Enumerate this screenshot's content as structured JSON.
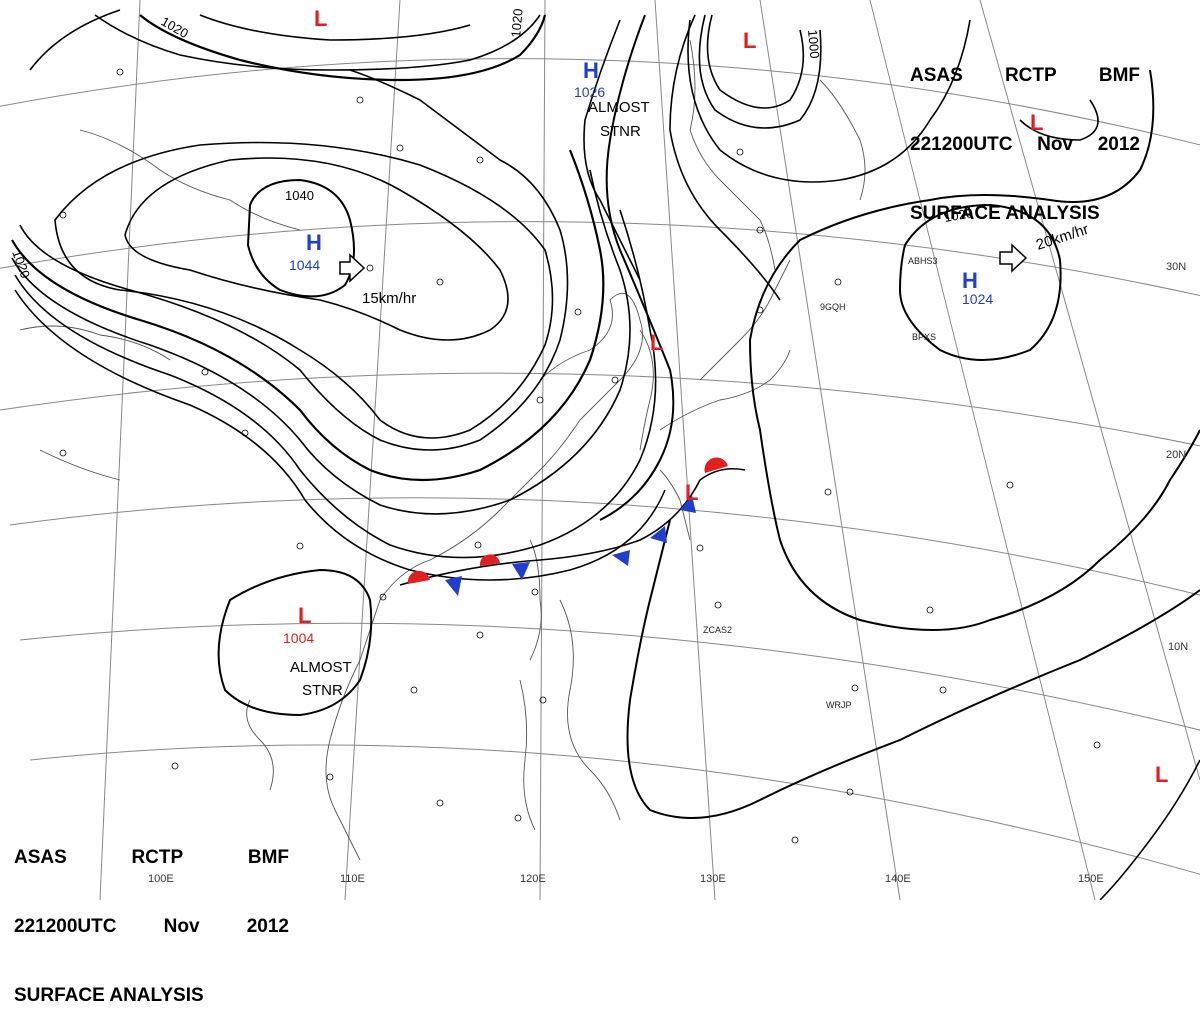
{
  "header": {
    "line1": [
      "ASAS",
      "RCTP",
      "BMF"
    ],
    "line2": [
      "221200UTC",
      "Nov",
      "2012"
    ],
    "line3": "SURFACE  ANALYSIS"
  },
  "pressure_centers": [
    {
      "type": "H",
      "value": "1044",
      "color": "#1f3fcf"
    },
    {
      "type": "H",
      "value": "1026",
      "color": "#1f3fcf"
    },
    {
      "type": "H",
      "value": "1024",
      "color": "#1f3fcf"
    },
    {
      "type": "L",
      "value": "1004",
      "color": "#e02020"
    },
    {
      "type": "L",
      "value": "",
      "color": "#e02020"
    }
  ],
  "motion_labels": [
    "15km/hr",
    "20km/hr"
  ],
  "status_labels": [
    "ALMOST",
    "STNR"
  ],
  "isobar_labels": [
    "1040",
    "1020",
    "1020",
    "1020",
    "1020",
    "1000"
  ],
  "longitude_labels": [
    "100E",
    "110E",
    "120E",
    "130E",
    "140E",
    "150E"
  ],
  "latitude_labels": [
    "30N",
    "20N",
    "10N"
  ],
  "station_codes": [
    "ABHS3",
    "BPXS",
    "9GQH",
    "ZCAS2",
    "WRJP"
  ],
  "colors": {
    "high": "#1f3fcf",
    "low": "#e02020",
    "warm_front": "#e02020",
    "cold_front": "#1f3fcf",
    "isobar": "#000000",
    "grid": "#777777",
    "coast": "#444444"
  }
}
